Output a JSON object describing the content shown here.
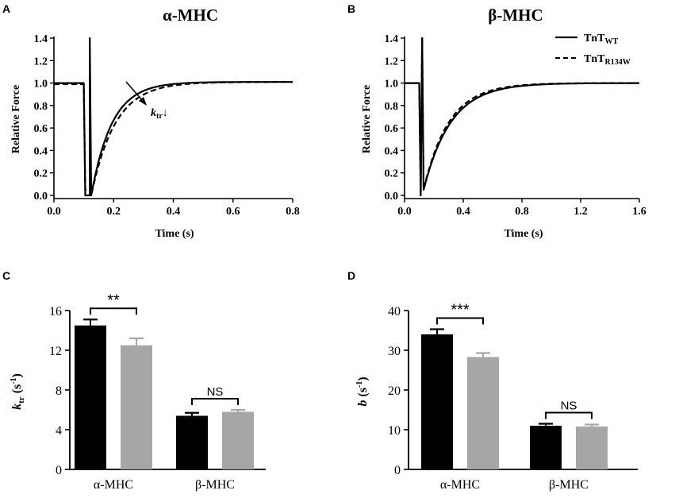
{
  "colors": {
    "wt": "#000000",
    "mut": "#a6a6a6",
    "axis": "#000000"
  },
  "chart_data": [
    {
      "panel": "A",
      "type": "line",
      "title": "α-MHC",
      "xlabel": "Time (s)",
      "ylabel": "Relative Force",
      "xlim": [
        0,
        0.8
      ],
      "ylim": [
        0,
        1.4
      ],
      "xticks": [
        "0.0",
        "0.2",
        "0.4",
        "0.6",
        "0.8"
      ],
      "yticks": [
        "0.0",
        "0.2",
        "0.4",
        "0.6",
        "0.8",
        "1.0",
        "1.2",
        "1.4"
      ],
      "annotation": {
        "main": "k",
        "sub": "tr",
        "arrow": "↓"
      },
      "series": [
        {
          "name": "TnT WT",
          "style": "solid",
          "ktr": 14.5,
          "x": [
            0,
            0.1,
            0.105,
            0.12,
            0.12,
            0.125,
            0.8
          ],
          "y": [
            1.0,
            1.0,
            0.0,
            0.0,
            1.4,
            0.0,
            1.01
          ]
        },
        {
          "name": "TnT R134W",
          "style": "dashed",
          "ktr": 12.5,
          "x": [
            0,
            0.1,
            0.105,
            0.12,
            0.125,
            0.8
          ],
          "y": [
            0.99,
            0.99,
            0.05,
            0.05,
            0.0,
            1.01
          ]
        }
      ]
    },
    {
      "panel": "B",
      "type": "line",
      "title": "β-MHC",
      "xlabel": "Time (s)",
      "ylabel": "Relative Force",
      "xlim": [
        0,
        1.6
      ],
      "ylim": [
        0,
        1.4
      ],
      "xticks": [
        "0.0",
        "0.4",
        "0.8",
        "1.2",
        "1.6"
      ],
      "yticks": [
        "0.0",
        "0.2",
        "0.4",
        "0.6",
        "0.8",
        "1.0",
        "1.2",
        "1.4"
      ],
      "legend": [
        {
          "main": "TnT",
          "sub": "WT",
          "style": "solid"
        },
        {
          "main": "TnT",
          "sub": "R134W",
          "style": "dashed"
        }
      ],
      "series": [
        {
          "name": "TnT WT",
          "style": "solid",
          "ktr": 5.4,
          "x": [
            0,
            0.1,
            0.11,
            0.12,
            0.13,
            1.6
          ],
          "y": [
            1.0,
            1.0,
            0.0,
            1.4,
            0.05,
            1.0
          ]
        },
        {
          "name": "TnT R134W",
          "style": "dashed",
          "ktr": 5.8,
          "x": [
            0,
            0.1,
            0.11,
            0.12,
            0.13,
            1.6
          ],
          "y": [
            1.0,
            1.0,
            0.0,
            1.4,
            0.05,
            1.0
          ]
        }
      ]
    },
    {
      "panel": "C",
      "type": "bar",
      "title": "",
      "ylabel_main": "k",
      "ylabel_sub": "tr",
      "ylabel_unit_open": " (s",
      "ylabel_unit_sup": "-1",
      "ylabel_unit_close": ")",
      "ylim": [
        0,
        16
      ],
      "yticks": [
        "0",
        "4",
        "8",
        "12",
        "16"
      ],
      "categories": [
        "α-MHC",
        "β-MHC"
      ],
      "series": [
        {
          "name": "TnT WT",
          "values": [
            14.5,
            5.4
          ],
          "errors": [
            0.6,
            0.3
          ]
        },
        {
          "name": "TnT R134W",
          "values": [
            12.5,
            5.8
          ],
          "errors": [
            0.7,
            0.2
          ]
        }
      ],
      "significance": [
        "**",
        "NS"
      ]
    },
    {
      "panel": "D",
      "type": "bar",
      "title": "",
      "ylabel_main": "b",
      "ylabel_unit_open": " (s",
      "ylabel_unit_sup": "-1",
      "ylabel_unit_close": ")",
      "ylim": [
        0,
        40
      ],
      "yticks": [
        "0",
        "10",
        "20",
        "30",
        "40"
      ],
      "categories": [
        "α-MHC",
        "β-MHC"
      ],
      "series": [
        {
          "name": "TnT WT",
          "values": [
            34.0,
            11.0
          ],
          "errors": [
            1.3,
            0.5
          ]
        },
        {
          "name": "TnT R134W",
          "values": [
            28.3,
            10.8
          ],
          "errors": [
            1.0,
            0.5
          ]
        }
      ],
      "significance": [
        "***",
        "NS"
      ]
    }
  ]
}
